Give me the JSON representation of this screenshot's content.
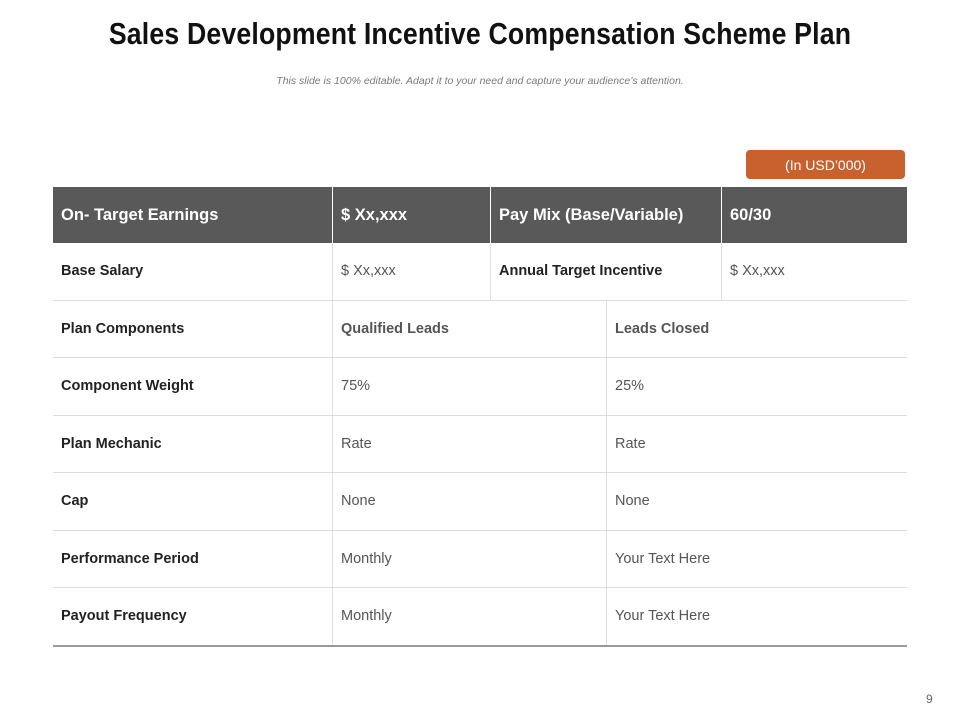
{
  "slide": {
    "title": "Sales Development Incentive Compensation Scheme Plan",
    "subtitle": "This slide is 100% editable. Adapt it to your need and capture your audience’s attention.",
    "unit_badge": "(In USD’000)",
    "page_number": "9",
    "accent_color": "#c9612f",
    "header_color": "#595959"
  },
  "table": {
    "header": {
      "c1": "On- Target Earnings",
      "c2": "$ Xx,xxx",
      "c3": "Pay Mix (Base/Variable)",
      "c4": "60/30"
    },
    "row1": {
      "c1": "Base Salary",
      "c2": "$ Xx,xxx",
      "c3": "Annual Target Incentive",
      "c4": "$ Xx,xxx"
    },
    "rows": [
      {
        "label": "Plan Components",
        "col2": "Qualified Leads",
        "col3": "Leads Closed"
      },
      {
        "label": "Component Weight",
        "col2": "75%",
        "col3": "25%"
      },
      {
        "label": "Plan Mechanic",
        "col2": "Rate",
        "col3": "Rate"
      },
      {
        "label": "Cap",
        "col2": "None",
        "col3": "None"
      },
      {
        "label": "Performance Period",
        "col2": "Monthly",
        "col3": "Your Text Here"
      },
      {
        "label": "Payout Frequency",
        "col2": "Monthly",
        "col3": "Your Text Here"
      }
    ]
  }
}
